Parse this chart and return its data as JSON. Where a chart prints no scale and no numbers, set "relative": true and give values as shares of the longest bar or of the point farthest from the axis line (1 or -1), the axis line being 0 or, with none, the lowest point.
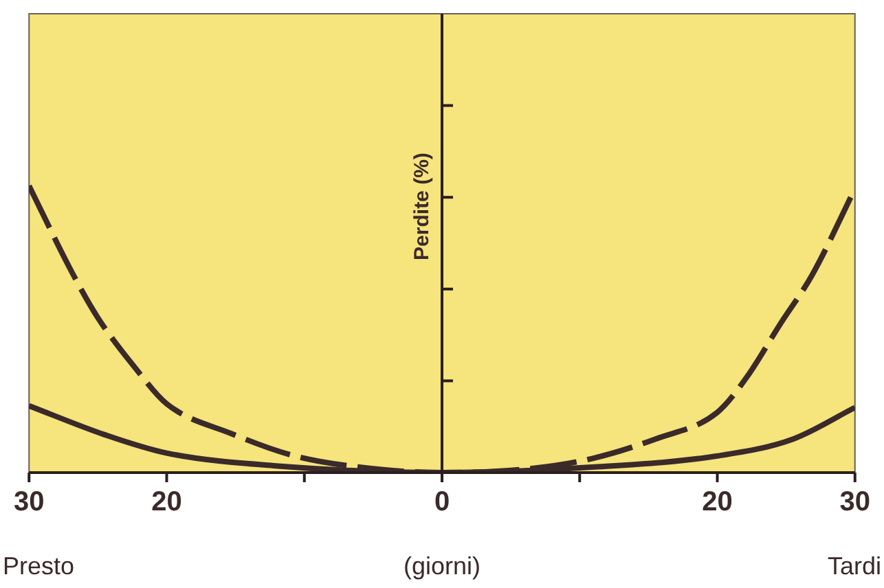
{
  "chart_data": {
    "type": "line",
    "relative": true,
    "xlabel": "(giorni)",
    "ylabel": "Perdite (%)",
    "annotations": [
      "Presto",
      "Tardi"
    ],
    "xlim": [
      -30,
      30
    ],
    "xticks": [
      {
        "value": -30,
        "label": "30"
      },
      {
        "value": -20,
        "label": "20"
      },
      {
        "value": -10,
        "label": null
      },
      0,
      {
        "value": 10,
        "label": null
      },
      20,
      30
    ],
    "marker": "none",
    "series": [
      {
        "color": "#3a2a2a",
        "line_style": "dashed",
        "x": [
          -30,
          -26.9,
          -25,
          -22.2,
          -20,
          -15.3,
          -10.7,
          -6.2,
          0,
          6.4,
          10.9,
          15.5,
          20,
          22.1,
          24.6,
          26.9,
          30
        ],
        "values": [
          1,
          0.7,
          0.54,
          0.36,
          0.24,
          0.136,
          0.058,
          0.02,
          0,
          0.014,
          0.049,
          0.117,
          0.21,
          0.33,
          0.52,
          0.69,
          0.99
        ]
      },
      {
        "color": "#3a2a2a",
        "line_style": "solid",
        "x": [
          -30,
          -24.5,
          -20,
          -11.9,
          0,
          10.9,
          20,
          25.5,
          30
        ],
        "values": [
          0.233,
          0.132,
          0.068,
          0.023,
          0,
          0.019,
          0.058,
          0.117,
          0.227
        ]
      }
    ]
  }
}
